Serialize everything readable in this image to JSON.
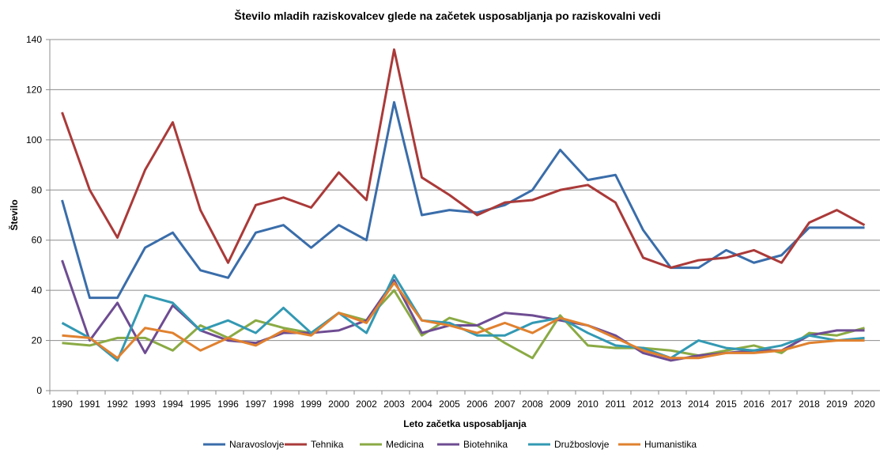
{
  "chart_data": {
    "type": "line",
    "title": "Število mladih raziskovalcev glede na začetek usposabljanja  po raziskovalni vedi",
    "xlabel": "Leto začetka usposabljanja",
    "ylabel": "Število",
    "ylim": [
      0,
      140
    ],
    "yticks": [
      0,
      20,
      40,
      60,
      80,
      100,
      120,
      140
    ],
    "grid": true,
    "legend": "bottom",
    "categories": [
      "1990",
      "1991",
      "1992",
      "1993",
      "1994",
      "1995",
      "1996",
      "1997",
      "1998",
      "1999",
      "2000",
      "2002",
      "2003",
      "2004",
      "2005",
      "2006",
      "2007",
      "2008",
      "2009",
      "2010",
      "2011",
      "2012",
      "2013",
      "2014",
      "2015",
      "2016",
      "2017",
      "2018",
      "2019",
      "2020"
    ],
    "series": [
      {
        "name": "Naravoslovje",
        "color": "#3A6DAA",
        "values": [
          76,
          37,
          37,
          57,
          63,
          48,
          45,
          63,
          66,
          57,
          66,
          60,
          115,
          70,
          72,
          71,
          74,
          80,
          96,
          84,
          86,
          64,
          49,
          49,
          56,
          51,
          54,
          65,
          65,
          65
        ]
      },
      {
        "name": "Tehnika",
        "color": "#AA3A39",
        "values": [
          111,
          80,
          61,
          88,
          107,
          72,
          51,
          74,
          77,
          73,
          87,
          76,
          136,
          85,
          78,
          70,
          75,
          76,
          80,
          82,
          75,
          53,
          49,
          52,
          53,
          56,
          51,
          67,
          72,
          66
        ]
      },
      {
        "name": "Medicina",
        "color": "#8AAA44",
        "values": [
          19,
          18,
          21,
          21,
          16,
          26,
          21,
          28,
          25,
          23,
          31,
          28,
          40,
          22,
          29,
          26,
          19,
          13,
          30,
          18,
          17,
          17,
          16,
          14,
          16,
          18,
          15,
          23,
          22,
          25
        ]
      },
      {
        "name": "Biotehnika",
        "color": "#6E4C92",
        "values": [
          52,
          20,
          35,
          15,
          34,
          24,
          20,
          19,
          23,
          23,
          24,
          28,
          44,
          23,
          26,
          26,
          31,
          30,
          28,
          26,
          22,
          15,
          12,
          14,
          15,
          16,
          16,
          22,
          24,
          24
        ]
      },
      {
        "name": "Družboslovje",
        "color": "#3399B3",
        "values": [
          27,
          21,
          12,
          38,
          35,
          24,
          28,
          23,
          33,
          23,
          31,
          23,
          46,
          28,
          27,
          22,
          22,
          27,
          29,
          23,
          18,
          17,
          13,
          20,
          17,
          16,
          18,
          22,
          20,
          21
        ]
      },
      {
        "name": "Humanistika",
        "color": "#E0812F",
        "values": [
          22,
          21,
          13,
          25,
          23,
          16,
          21,
          18,
          24,
          22,
          31,
          27,
          43,
          28,
          26,
          23,
          27,
          23,
          29,
          26,
          21,
          16,
          13,
          13,
          15,
          15,
          16,
          19,
          20,
          20
        ]
      }
    ]
  }
}
